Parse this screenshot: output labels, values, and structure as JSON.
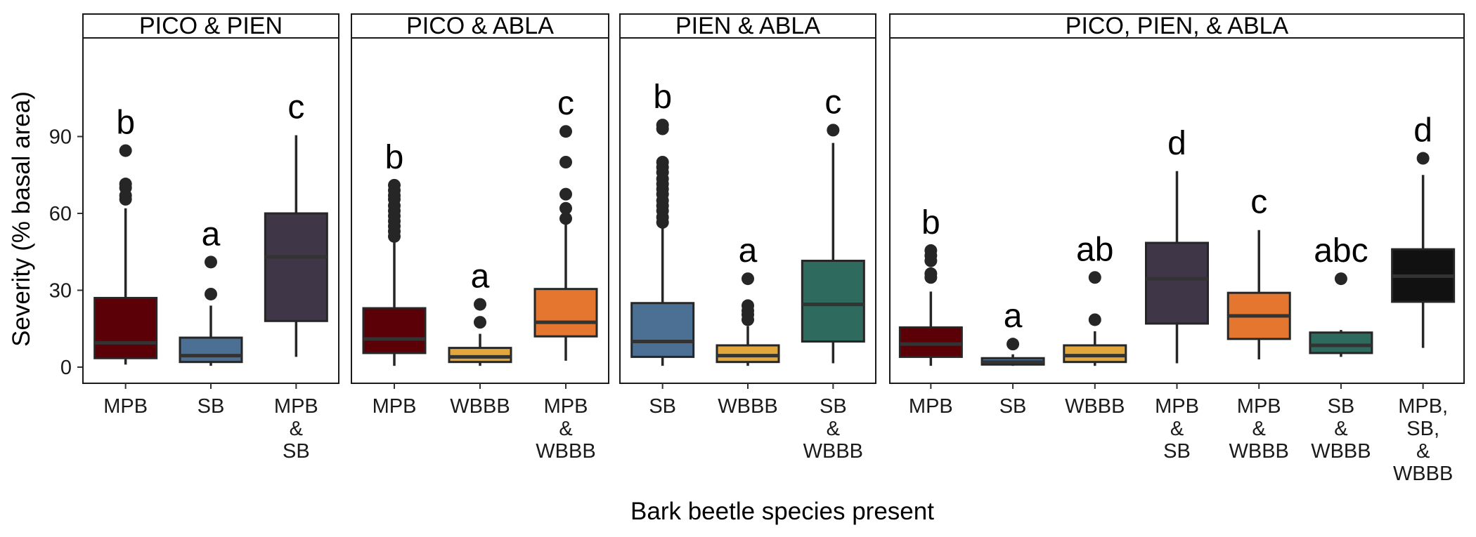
{
  "chart_data": {
    "type": "boxplot",
    "ylabel": "Severity (% basal area)",
    "xlabel": "Bark beetle species present",
    "ylim": [
      -5,
      120
    ],
    "yticks": [
      0,
      30,
      60,
      90
    ],
    "grid": false,
    "colors": {
      "MPB": "#5c0008",
      "SB": "#4b7094",
      "WBBB": "#e3a63a",
      "MPB & SB": "#3f3747",
      "MPB & WBBB": "#e5762f",
      "SB & WBBB": "#2e6b5e",
      "MPB, SB, & WBBB": "#111111"
    },
    "panels": [
      {
        "title": "PICO & PIEN",
        "groups": [
          {
            "label": [
              "MPB"
            ],
            "key": "MPB",
            "letter": "b",
            "whisker_low": 1,
            "q1": 3.5,
            "median": 9.5,
            "q3": 27,
            "whisker_high": 62,
            "outliers": [
              65.5,
              67,
              70,
              71.5,
              84.5
            ]
          },
          {
            "label": [
              "SB"
            ],
            "key": "SB",
            "letter": "a",
            "whisker_low": 0.5,
            "q1": 2,
            "median": 4.5,
            "q3": 11.5,
            "whisker_high": 24,
            "outliers": [
              28.5,
              41
            ]
          },
          {
            "label": [
              "MPB",
              "&",
              "SB"
            ],
            "key": "MPB & SB",
            "letter": "c",
            "whisker_low": 4,
            "q1": 18,
            "median": 43,
            "q3": 60,
            "whisker_high": 90.5,
            "outliers": []
          }
        ]
      },
      {
        "title": "PICO & ABLA",
        "groups": [
          {
            "label": [
              "MPB"
            ],
            "key": "MPB",
            "letter": "b",
            "whisker_low": 0.5,
            "q1": 5.5,
            "median": 11,
            "q3": 23,
            "whisker_high": 50,
            "outliers": [
              51,
              53,
              55,
              57,
              59,
              61,
              63,
              65.5,
              67,
              69,
              71
            ]
          },
          {
            "label": [
              "WBBB"
            ],
            "key": "WBBB",
            "letter": "a",
            "whisker_low": 0.5,
            "q1": 2,
            "median": 4,
            "q3": 7.5,
            "whisker_high": 13,
            "outliers": [
              17.5,
              24.5
            ]
          },
          {
            "label": [
              "MPB",
              "&",
              "WBBB"
            ],
            "key": "MPB & WBBB",
            "letter": "c",
            "whisker_low": 2.5,
            "q1": 12,
            "median": 17.5,
            "q3": 30.5,
            "whisker_high": 57,
            "outliers": [
              58,
              62,
              67.5,
              80,
              92
            ]
          }
        ]
      },
      {
        "title": "PIEN & ABLA",
        "groups": [
          {
            "label": [
              "SB"
            ],
            "key": "SB",
            "letter": "b",
            "whisker_low": 0.5,
            "q1": 4,
            "median": 10,
            "q3": 25,
            "whisker_high": 55,
            "outliers": [
              56.5,
              58.5,
              61,
              63,
              65,
              67.5,
              69.5,
              71.5,
              73.5,
              76,
              78,
              80,
              93,
              94.5
            ]
          },
          {
            "label": [
              "WBBB"
            ],
            "key": "WBBB",
            "letter": "a",
            "whisker_low": 0.5,
            "q1": 2,
            "median": 4.5,
            "q3": 8.5,
            "whisker_high": 16,
            "outliers": [
              18.5,
              20.5,
              22,
              24,
              34.5
            ]
          },
          {
            "label": [
              "SB",
              "&",
              "WBBB"
            ],
            "key": "SB & WBBB",
            "letter": "c",
            "whisker_low": 1.5,
            "q1": 10,
            "median": 24.5,
            "q3": 41.5,
            "whisker_high": 87.5,
            "outliers": [
              92.5
            ]
          }
        ]
      },
      {
        "title": "PICO, PIEN, & ABLA",
        "groups": [
          {
            "label": [
              "MPB"
            ],
            "key": "MPB",
            "letter": "b",
            "whisker_low": 0.5,
            "q1": 4,
            "median": 9,
            "q3": 15.5,
            "whisker_high": 29.5,
            "outliers": [
              35,
              36.5,
              41.5,
              43.5,
              45.5
            ]
          },
          {
            "label": [
              "SB"
            ],
            "key": "SB",
            "letter": "a",
            "whisker_low": 0.5,
            "q1": 1,
            "median": 2,
            "q3": 3.5,
            "whisker_high": 5,
            "outliers": [
              9
            ]
          },
          {
            "label": [
              "WBBB"
            ],
            "key": "WBBB",
            "letter": "ab",
            "whisker_low": 0.5,
            "q1": 2,
            "median": 4.5,
            "q3": 8.5,
            "whisker_high": 14,
            "outliers": [
              18.5,
              35
            ]
          },
          {
            "label": [
              "MPB",
              "&",
              "SB"
            ],
            "key": "MPB & SB",
            "letter": "d",
            "whisker_low": 1.5,
            "q1": 17,
            "median": 34.5,
            "q3": 48.5,
            "whisker_high": 76.5,
            "outliers": []
          },
          {
            "label": [
              "MPB",
              "&",
              "WBBB"
            ],
            "key": "MPB & WBBB",
            "letter": "c",
            "whisker_low": 3,
            "q1": 11,
            "median": 20,
            "q3": 29,
            "whisker_high": 53.5,
            "outliers": []
          },
          {
            "label": [
              "SB",
              "&",
              "WBBB"
            ],
            "key": "SB & WBBB",
            "letter": "abc",
            "whisker_low": 4,
            "q1": 5.5,
            "median": 8.5,
            "q3": 13.5,
            "whisker_high": 14.5,
            "outliers": [
              34.5
            ]
          },
          {
            "label": [
              "MPB,",
              "SB,",
              "&",
              "WBBB"
            ],
            "key": "MPB, SB, & WBBB",
            "letter": "d",
            "whisker_low": 7.5,
            "q1": 25.5,
            "median": 35.5,
            "q3": 46,
            "whisker_high": 75,
            "outliers": [
              81.5
            ]
          }
        ]
      }
    ]
  }
}
